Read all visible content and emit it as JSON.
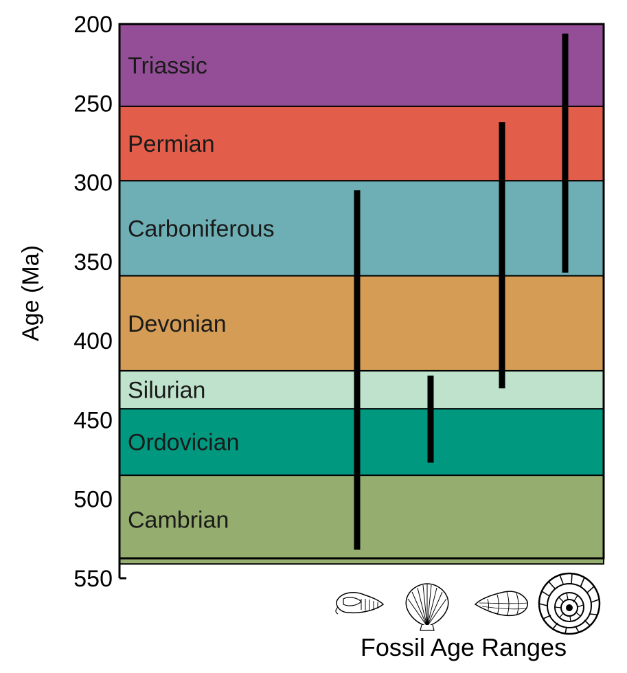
{
  "chart_data": {
    "type": "timeline",
    "ylabel": "Age (Ma)",
    "ylim": [
      200,
      550
    ],
    "yticks": [
      200,
      250,
      300,
      350,
      400,
      450,
      500,
      550
    ],
    "periods": [
      {
        "name": "Triassic",
        "start": 200,
        "end": 252,
        "color": "#944E97"
      },
      {
        "name": "Permian",
        "start": 252,
        "end": 299,
        "color": "#E35E4A"
      },
      {
        "name": "Carboniferous",
        "start": 299,
        "end": 359,
        "color": "#6DAFB4"
      },
      {
        "name": "Devonian",
        "start": 359,
        "end": 419,
        "color": "#D49C55"
      },
      {
        "name": "Silurian",
        "start": 419,
        "end": 443,
        "color": "#BEE2CC"
      },
      {
        "name": "Ordovician",
        "start": 443,
        "end": 485,
        "color": "#009980"
      },
      {
        "name": "Cambrian",
        "start": 485,
        "end": 541,
        "color": "#95AD6E"
      }
    ],
    "ranges": [
      {
        "fossil": "trilobite-icon",
        "from": 305,
        "to": 532
      },
      {
        "fossil": "scallop-shell-icon",
        "from": 422,
        "to": 477
      },
      {
        "fossil": "gastropod-shell-icon",
        "from": 262,
        "to": 430
      },
      {
        "fossil": "ammonite-icon",
        "from": 206,
        "to": 357
      }
    ],
    "caption": "Fossil Age Ranges"
  }
}
